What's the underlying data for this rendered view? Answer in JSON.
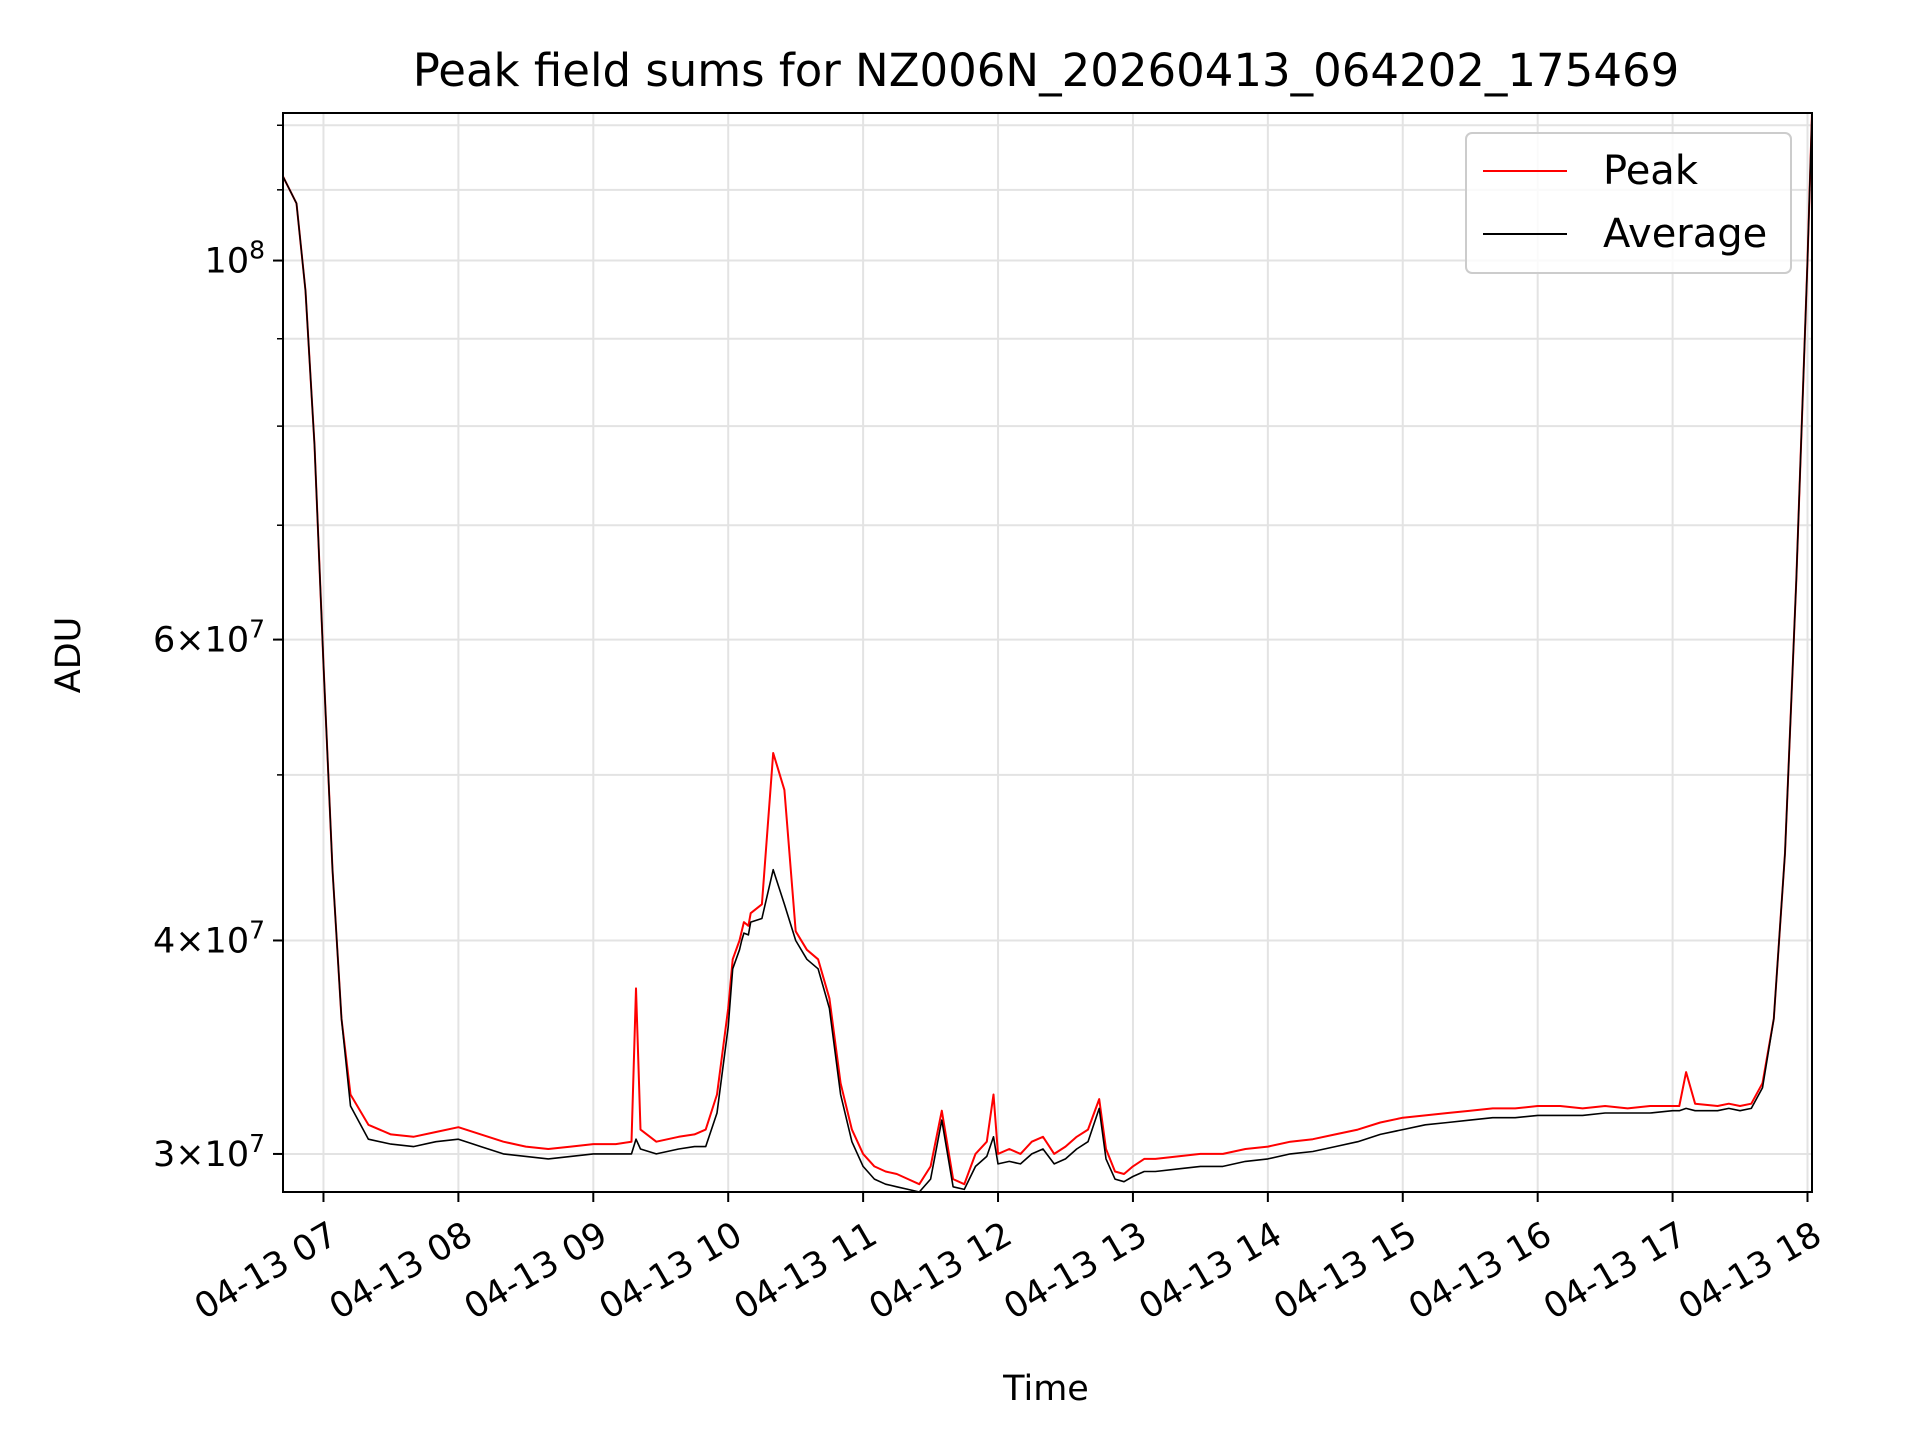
{
  "chart_data": {
    "type": "line",
    "title": "Peak field sums for NZ006N_20260413_064202_175469",
    "xlabel": "Time",
    "ylabel": "ADU",
    "x_range": [
      "2026-04-13 06:42",
      "2026-04-13 18:02"
    ],
    "y_scale": "log",
    "ylim": [
      28500000,
      122000000
    ],
    "grid": true,
    "legend_position": "top-right",
    "x_ticks": [
      "04-13 07",
      "04-13 08",
      "04-13 09",
      "04-13 10",
      "04-13 11",
      "04-13 12",
      "04-13 13",
      "04-13 14",
      "04-13 15",
      "04-13 16",
      "04-13 17",
      "04-13 18"
    ],
    "y_ticks": [
      {
        "value": 30000000,
        "base": "3",
        "exp": "7",
        "times": true
      },
      {
        "value": 40000000,
        "base": "4",
        "exp": "7",
        "times": true
      },
      {
        "value": 60000000,
        "base": "6",
        "exp": "7",
        "times": true
      },
      {
        "value": 100000000,
        "base": "10",
        "exp": "8",
        "times": false
      }
    ],
    "series": [
      {
        "name": "Peak",
        "color": "#ff0000",
        "x": [
          "06:42",
          "06:45",
          "06:48",
          "06:52",
          "06:56",
          "07:00",
          "07:04",
          "07:08",
          "07:12",
          "07:20",
          "07:30",
          "07:40",
          "07:50",
          "08:00",
          "08:10",
          "08:20",
          "08:30",
          "08:40",
          "08:50",
          "09:00",
          "09:10",
          "09:17",
          "09:19",
          "09:21",
          "09:28",
          "09:38",
          "09:45",
          "09:50",
          "09:55",
          "10:00",
          "10:02",
          "10:05",
          "10:06",
          "10:07",
          "10:09",
          "10:10",
          "10:15",
          "10:20",
          "10:25",
          "10:30",
          "10:35",
          "10:40",
          "10:45",
          "10:50",
          "10:55",
          "11:00",
          "11:05",
          "11:10",
          "11:15",
          "11:20",
          "11:25",
          "11:30",
          "11:35",
          "11:40",
          "11:45",
          "11:50",
          "11:55",
          "11:58",
          "12:00",
          "12:05",
          "12:10",
          "12:15",
          "12:20",
          "12:25",
          "12:30",
          "12:35",
          "12:40",
          "12:45",
          "12:48",
          "12:52",
          "12:56",
          "13:00",
          "13:05",
          "13:10",
          "13:20",
          "13:30",
          "13:40",
          "13:50",
          "14:00",
          "14:10",
          "14:20",
          "14:30",
          "14:40",
          "14:50",
          "15:00",
          "15:10",
          "15:20",
          "15:30",
          "15:40",
          "15:50",
          "16:00",
          "16:10",
          "16:20",
          "16:30",
          "16:40",
          "16:50",
          "17:00",
          "17:03",
          "17:06",
          "17:10",
          "17:20",
          "17:25",
          "17:30",
          "17:35",
          "17:40",
          "17:45",
          "17:50",
          "17:55",
          "18:00",
          "18:02"
        ],
        "values": [
          112000000,
          110000000,
          108000000,
          96000000,
          78000000,
          58000000,
          44000000,
          36000000,
          32500000,
          31200000,
          30800000,
          30700000,
          30900000,
          31100000,
          30800000,
          30500000,
          30300000,
          30200000,
          30300000,
          30400000,
          30400000,
          30500000,
          37500000,
          31000000,
          30500000,
          30700000,
          30800000,
          31000000,
          32500000,
          36500000,
          39000000,
          40000000,
          40500000,
          41000000,
          40800000,
          41500000,
          42000000,
          51500000,
          49000000,
          40500000,
          39500000,
          39000000,
          37000000,
          33000000,
          31000000,
          30000000,
          29500000,
          29300000,
          29200000,
          29000000,
          28800000,
          29500000,
          31800000,
          29000000,
          28800000,
          30000000,
          30500000,
          32500000,
          30000000,
          30200000,
          30000000,
          30500000,
          30700000,
          30000000,
          30300000,
          30700000,
          31000000,
          32300000,
          30200000,
          29300000,
          29200000,
          29500000,
          29800000,
          29800000,
          29900000,
          30000000,
          30000000,
          30200000,
          30300000,
          30500000,
          30600000,
          30800000,
          31000000,
          31300000,
          31500000,
          31600000,
          31700000,
          31800000,
          31900000,
          31900000,
          32000000,
          32000000,
          31900000,
          32000000,
          31900000,
          32000000,
          32000000,
          32000000,
          33500000,
          32100000,
          32000000,
          32100000,
          32000000,
          32100000,
          33000000,
          36000000,
          45000000,
          65000000,
          100000000,
          122000000
        ]
      },
      {
        "name": "Average",
        "color": "#000000",
        "x": [
          "06:42",
          "06:45",
          "06:48",
          "06:52",
          "06:56",
          "07:00",
          "07:04",
          "07:08",
          "07:12",
          "07:20",
          "07:30",
          "07:40",
          "07:50",
          "08:00",
          "08:10",
          "08:20",
          "08:30",
          "08:40",
          "08:50",
          "09:00",
          "09:10",
          "09:17",
          "09:19",
          "09:21",
          "09:28",
          "09:38",
          "09:45",
          "09:50",
          "09:55",
          "10:00",
          "10:02",
          "10:05",
          "10:06",
          "10:07",
          "10:09",
          "10:10",
          "10:15",
          "10:20",
          "10:25",
          "10:30",
          "10:35",
          "10:40",
          "10:45",
          "10:50",
          "10:55",
          "11:00",
          "11:05",
          "11:10",
          "11:15",
          "11:20",
          "11:25",
          "11:30",
          "11:35",
          "11:40",
          "11:45",
          "11:50",
          "11:55",
          "11:58",
          "12:00",
          "12:05",
          "12:10",
          "12:15",
          "12:20",
          "12:25",
          "12:30",
          "12:35",
          "12:40",
          "12:45",
          "12:48",
          "12:52",
          "12:56",
          "13:00",
          "13:05",
          "13:10",
          "13:20",
          "13:30",
          "13:40",
          "13:50",
          "14:00",
          "14:10",
          "14:20",
          "14:30",
          "14:40",
          "14:50",
          "15:00",
          "15:10",
          "15:20",
          "15:30",
          "15:40",
          "15:50",
          "16:00",
          "16:10",
          "16:20",
          "16:30",
          "16:40",
          "16:50",
          "17:00",
          "17:03",
          "17:06",
          "17:10",
          "17:20",
          "17:25",
          "17:30",
          "17:35",
          "17:40",
          "17:45",
          "17:50",
          "17:55",
          "18:00",
          "18:02"
        ],
        "values": [
          112000000,
          110000000,
          108000000,
          96000000,
          78000000,
          58000000,
          44000000,
          36000000,
          32000000,
          30600000,
          30400000,
          30300000,
          30500000,
          30600000,
          30300000,
          30000000,
          29900000,
          29800000,
          29900000,
          30000000,
          30000000,
          30000000,
          30600000,
          30200000,
          30000000,
          30200000,
          30300000,
          30300000,
          31700000,
          35600000,
          38500000,
          39500000,
          40000000,
          40400000,
          40300000,
          41000000,
          41200000,
          44000000,
          42000000,
          40000000,
          39000000,
          38500000,
          36500000,
          32500000,
          30500000,
          29500000,
          29000000,
          28800000,
          28700000,
          28600000,
          28500000,
          29000000,
          31400000,
          28700000,
          28600000,
          29500000,
          29900000,
          30700000,
          29600000,
          29700000,
          29600000,
          30000000,
          30200000,
          29600000,
          29800000,
          30200000,
          30500000,
          31900000,
          29800000,
          29000000,
          28900000,
          29100000,
          29300000,
          29300000,
          29400000,
          29500000,
          29500000,
          29700000,
          29800000,
          30000000,
          30100000,
          30300000,
          30500000,
          30800000,
          31000000,
          31200000,
          31300000,
          31400000,
          31500000,
          31500000,
          31600000,
          31600000,
          31600000,
          31700000,
          31700000,
          31700000,
          31800000,
          31800000,
          31900000,
          31800000,
          31800000,
          31900000,
          31800000,
          31900000,
          32800000,
          36000000,
          45000000,
          65000000,
          100000000,
          122000000
        ]
      }
    ]
  }
}
